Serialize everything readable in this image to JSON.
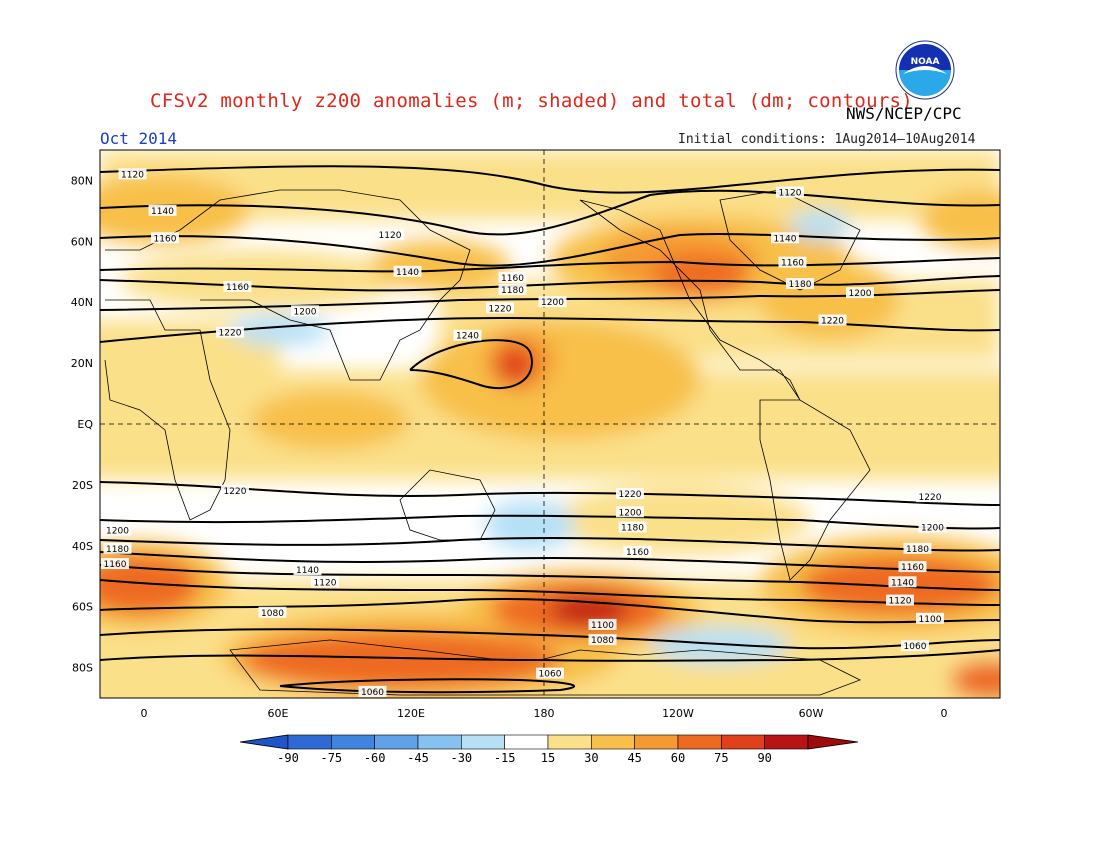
{
  "header": {
    "title": "CFSv2 monthly z200 anomalies (m; shaded) and total (dm; contours)",
    "agency": "NWS/NCEP/CPC",
    "month": "Oct 2014",
    "initial_conditions": "Initial conditions: 1Aug2014–10Aug2014",
    "logo_text": "NOAA"
  },
  "map": {
    "projection": "cylindrical equidistant, centered on 180",
    "lon_labels": [
      "0",
      "60E",
      "120E",
      "180",
      "120W",
      "60W",
      "0"
    ],
    "lat_labels": [
      "80N",
      "60N",
      "40N",
      "20N",
      "EQ",
      "20S",
      "40S",
      "60S",
      "80S"
    ],
    "lat_values": [
      80,
      60,
      40,
      20,
      0,
      -20,
      -40,
      -60,
      -80
    ]
  },
  "contour_labels": [
    {
      "text": "1120",
      "lon": -7,
      "lat": 82
    },
    {
      "text": "1140",
      "lon": 5,
      "lat": 70
    },
    {
      "text": "1160",
      "lon": 6,
      "lat": 61
    },
    {
      "text": "1160",
      "lon": 35,
      "lat": 45
    },
    {
      "text": "1200",
      "lon": 62,
      "lat": 37
    },
    {
      "text": "1220",
      "lon": 32,
      "lat": 30
    },
    {
      "text": "1120",
      "lon": 96,
      "lat": 62
    },
    {
      "text": "1140",
      "lon": 103,
      "lat": 50
    },
    {
      "text": "1160",
      "lon": 145,
      "lat": 48
    },
    {
      "text": "1180",
      "lon": 145,
      "lat": 44
    },
    {
      "text": "1220",
      "lon": 140,
      "lat": 38
    },
    {
      "text": "1200",
      "lon": 161,
      "lat": 40
    },
    {
      "text": "1240",
      "lon": 127,
      "lat": 29
    },
    {
      "text": "1120",
      "lon": -104,
      "lat": 76
    },
    {
      "text": "1140",
      "lon": -106,
      "lat": 61
    },
    {
      "text": "1160",
      "lon": -103,
      "lat": 53
    },
    {
      "text": "1180",
      "lon": -100,
      "lat": 46
    },
    {
      "text": "1200",
      "lon": -76,
      "lat": 43
    },
    {
      "text": "1220",
      "lon": -87,
      "lat": 34
    },
    {
      "text": "1220",
      "lon": 34,
      "lat": -22
    },
    {
      "text": "1200",
      "lon": -13,
      "lat": -35
    },
    {
      "text": "1180",
      "lon": -13,
      "lat": -41
    },
    {
      "text": "1160",
      "lon": -14,
      "lat": -46
    },
    {
      "text": "1140",
      "lon": 63,
      "lat": -48
    },
    {
      "text": "1120",
      "lon": 70,
      "lat": -52
    },
    {
      "text": "1080",
      "lon": 49,
      "lat": -62
    },
    {
      "text": "1220",
      "lon": -168,
      "lat": -23
    },
    {
      "text": "1200",
      "lon": -168,
      "lat": -29
    },
    {
      "text": "1180",
      "lon": -167,
      "lat": -34
    },
    {
      "text": "1160",
      "lon": -165,
      "lat": -42
    },
    {
      "text": "1100",
      "lon": -179,
      "lat": -66
    },
    {
      "text": "1080",
      "lon": -179,
      "lat": -71
    },
    {
      "text": "1060",
      "lon": 160,
      "lat": -82
    },
    {
      "text": "1060",
      "lon": 89,
      "lat": -88
    },
    {
      "text": "1220",
      "lon": -48,
      "lat": -24
    },
    {
      "text": "1200",
      "lon": -47,
      "lat": -34
    },
    {
      "text": "1180",
      "lon": -53,
      "lat": -41
    },
    {
      "text": "1160",
      "lon": -55,
      "lat": -47
    },
    {
      "text": "1140",
      "lon": -59,
      "lat": -52
    },
    {
      "text": "1120",
      "lon": -60,
      "lat": -58
    },
    {
      "text": "1100",
      "lon": -48,
      "lat": -64
    },
    {
      "text": "1060",
      "lon": -54,
      "lat": -73
    }
  ],
  "colorbar": {
    "labels": [
      "-90",
      "-75",
      "-60",
      "-45",
      "-30",
      "-15",
      "15",
      "30",
      "45",
      "60",
      "75",
      "90"
    ],
    "colors": [
      "#2d6ad6",
      "#3f85e0",
      "#5fa2ea",
      "#86c1f0",
      "#b5e0f6",
      "#ffffff",
      "#fbe08a",
      "#f8c04a",
      "#f59a30",
      "#ee6a20",
      "#e0401a",
      "#b81414",
      "#a80a0a"
    ],
    "under_color": "#1f55c8",
    "over_color": "#a00a0a"
  },
  "colors": {
    "title": "#e0261b",
    "month": "#1a3fd0",
    "contour": "#000000"
  }
}
